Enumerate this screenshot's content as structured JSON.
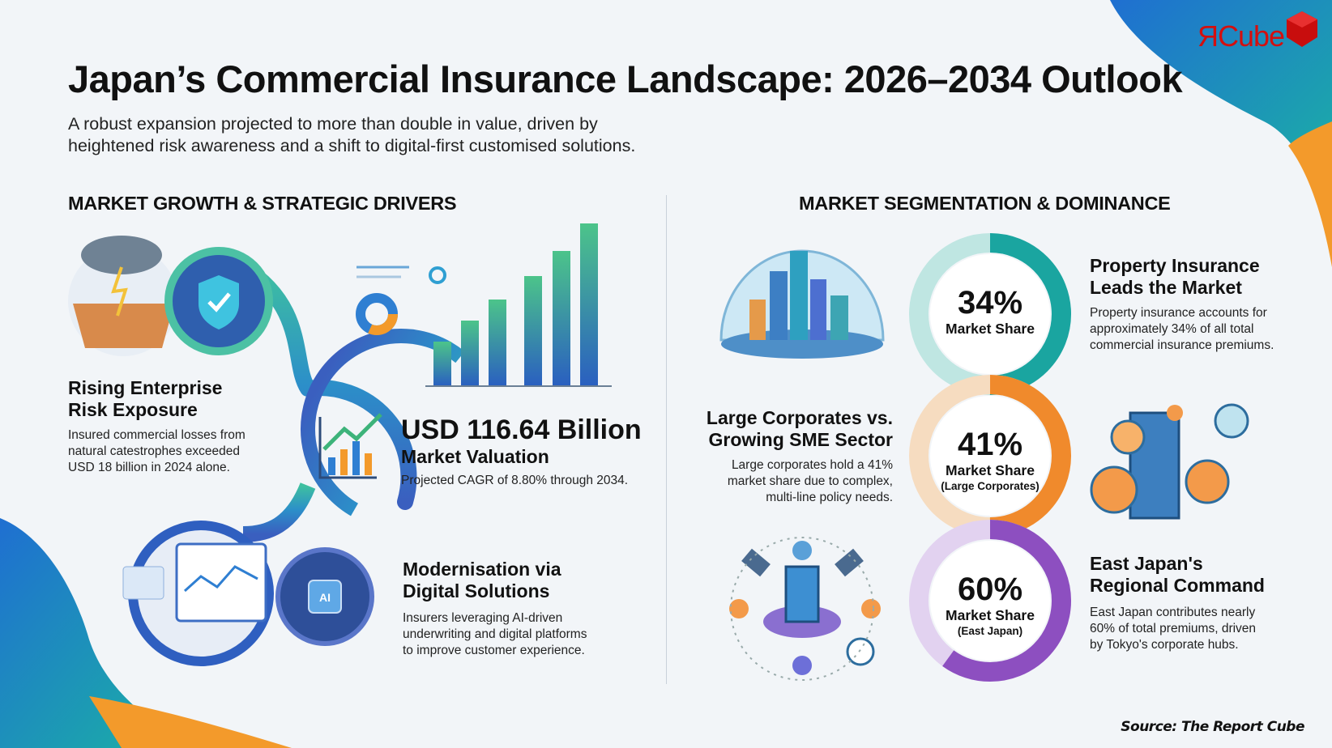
{
  "header": {
    "title": "Japan’s Commercial Insurance Landscape: 2026–2034 Outlook",
    "subtitle_line1": "A robust expansion projected to more than double in value, driven by",
    "subtitle_line2": "heightened risk awareness and a shift to digital-first customised solutions."
  },
  "logo": {
    "text": "ЯCube",
    "color": "#d40f0f"
  },
  "left_section": {
    "heading": "MARKET GROWTH & STRATEGIC DRIVERS",
    "risk": {
      "title_line1": "Rising Enterprise",
      "title_line2": "Risk Exposure",
      "body_line1": "Insured commercial losses from",
      "body_line2": "natural catestrophes exceeded",
      "body_line3": "USD 18 billion in 2024 alone.",
      "icons": [
        "storm-earthquake-icon",
        "shield-check-icon"
      ]
    },
    "valuation": {
      "value": "USD 116.64 Billion",
      "label": "Market Valuation",
      "note": "Projected CAGR of 8.80% through 2034.",
      "icons": [
        "growth-chart-icon",
        "bar-chart-illustration",
        "donut-chart-icon"
      ]
    },
    "digital": {
      "title_line1": "Modernisation via",
      "title_line2": "Digital Solutions",
      "body_line1": "Insurers leveraging AI-driven",
      "body_line2": "underwriting and digital platforms",
      "body_line3": "to improve customer experience.",
      "icons": [
        "dashboard-icon",
        "ai-chip-icon"
      ]
    }
  },
  "right_section": {
    "heading": "MARKET SEGMENTATION & DOMINANCE",
    "segments": [
      {
        "pct": "34%",
        "share_fraction": 0.34,
        "label": "Market Share",
        "sub": "",
        "title_line1": "Property Insurance",
        "title_line2": "Leads the Market",
        "body_line1": "Property insurance accounts for",
        "body_line2": "approximately 34% of all total",
        "body_line3": "commercial insurance premiums.",
        "color": "#1aa5a0",
        "light": "#bfe6e2",
        "icon": "city-dome-icon"
      },
      {
        "pct": "41%",
        "share_fraction": 0.41,
        "label": "Market Share",
        "sub": "(Large Corporates)",
        "title_line1": "Large Corporates vs.",
        "title_line2": "Growing SME Sector",
        "body_line1": "Large corporates hold a 41%",
        "body_line2": "market share due to complex,",
        "body_line3": "multi-line policy needs.",
        "color": "#f08a2c",
        "light": "#f6dcc0",
        "icon": "corporate-network-icon"
      },
      {
        "pct": "60%",
        "share_fraction": 0.6,
        "label": "Market Share",
        "sub": "(East Japan)",
        "title_line1": "East Japan's",
        "title_line2": "Regional Command",
        "body_line1": "East Japan contributes nearly",
        "body_line2": "60% of total premiums, driven",
        "body_line3": "by Tokyo's corporate hubs.",
        "color": "#8d4fc0",
        "light": "#e2d2f0",
        "icon": "satellite-hub-icon"
      }
    ]
  },
  "footer": {
    "source": "Source: The Report Cube"
  }
}
